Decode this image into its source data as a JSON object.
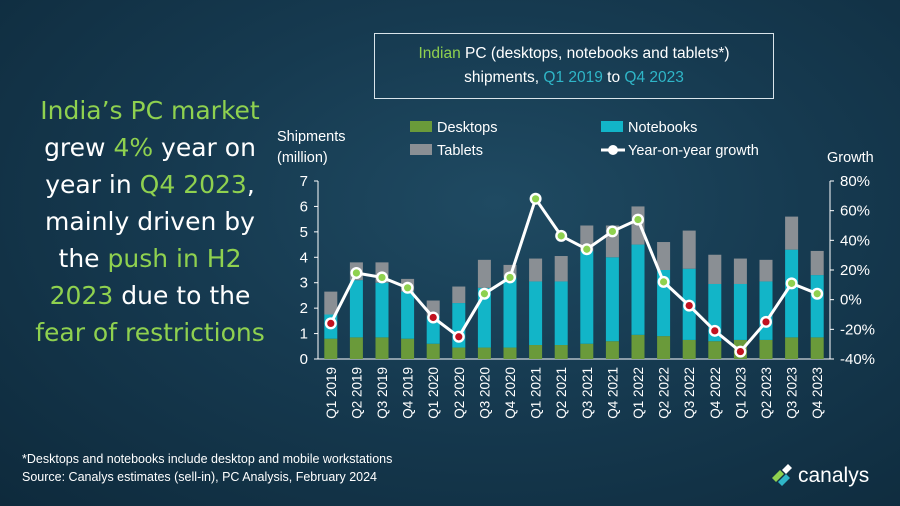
{
  "headline": {
    "l1_a": "India’s PC market",
    "l2_a": "grew ",
    "l2_b": "4%",
    "l2_c": " year on",
    "l3_a": "year in ",
    "l3_b": "Q4 2023",
    "l3_c": ",",
    "l4_a": "mainly driven by",
    "l5_a": "the ",
    "l5_b": "push in H2",
    "l6_a": "2023",
    "l6_b": " due to the",
    "l7_a": "fear of restrictions"
  },
  "title_box": {
    "a": "Indian",
    "b": " PC (desktops, notebooks and tablets*)",
    "c": "shipments, ",
    "d": "Q1 2019",
    "e": " to ",
    "f": "Q4 2023"
  },
  "footnote": {
    "line1": "*Desktops and notebooks  include desktop and mobile workstations",
    "line2": "Source:  Canalys estimates (sell-in), PC Analysis, February 2024"
  },
  "logo": {
    "text": "canalys"
  },
  "colors": {
    "desktops": "#6a9a3a",
    "notebooks": "#12b5c8",
    "tablets": "#8a8f94",
    "growth_line": "#ffffff",
    "growth_positive": "#8fd14f",
    "growth_negative": "#c1121f"
  },
  "chart_data": {
    "type": "bar",
    "stacked": true,
    "title": "Indian PC (desktops, notebooks and tablets*) shipments, Q1 2019 to Q4 2023",
    "ylabel": "Shipments (million)",
    "y2label": "Growth",
    "categories": [
      "Q1 2019",
      "Q2 2019",
      "Q3 2019",
      "Q4 2019",
      "Q1 2020",
      "Q2 2020",
      "Q3 2020",
      "Q4 2020",
      "Q1 2021",
      "Q2 2021",
      "Q3 2021",
      "Q4 2021",
      "Q1 2022",
      "Q2 2022",
      "Q3 2022",
      "Q4 2022",
      "Q1 2023",
      "Q2 2023",
      "Q3 2023",
      "Q4 2023"
    ],
    "series": [
      {
        "name": "Desktops",
        "values": [
          0.8,
          0.85,
          0.85,
          0.8,
          0.6,
          0.45,
          0.45,
          0.45,
          0.55,
          0.55,
          0.6,
          0.7,
          0.95,
          0.9,
          0.75,
          0.7,
          0.75,
          0.75,
          0.85,
          0.85
        ]
      },
      {
        "name": "Notebooks",
        "values": [
          0.95,
          2.25,
          2.15,
          1.85,
          1.1,
          1.75,
          2.35,
          2.75,
          2.5,
          2.5,
          3.65,
          3.3,
          3.55,
          2.6,
          2.8,
          2.25,
          2.2,
          2.3,
          3.45,
          2.45
        ]
      },
      {
        "name": "Tablets",
        "values": [
          0.9,
          0.7,
          0.8,
          0.5,
          0.6,
          0.65,
          1.1,
          0.5,
          0.9,
          1.0,
          1.0,
          1.25,
          1.5,
          1.1,
          1.5,
          1.15,
          1.0,
          0.85,
          1.3,
          0.95
        ]
      }
    ],
    "growth": {
      "name": "Year-on-year growth",
      "values": [
        -16,
        18,
        15,
        8,
        -12,
        -25,
        4,
        15,
        68,
        43,
        34,
        46,
        54,
        12,
        -4,
        -21,
        -35,
        -15,
        11,
        4
      ]
    },
    "ylim": [
      0,
      7
    ],
    "y2lim": [
      -40,
      80
    ],
    "yticks": [
      "0",
      "1",
      "2",
      "3",
      "4",
      "5",
      "6",
      "7"
    ],
    "y2ticks": [
      "-40%",
      "-20%",
      "0%",
      "20%",
      "40%",
      "60%",
      "80%"
    ],
    "legend": {
      "desktops": "Desktops",
      "notebooks": "Notebooks",
      "tablets": "Tablets",
      "growth": "Year-on-year growth"
    },
    "axis_titles": {
      "left1": "Shipments",
      "left2": "(million)",
      "right": "Growth"
    }
  }
}
